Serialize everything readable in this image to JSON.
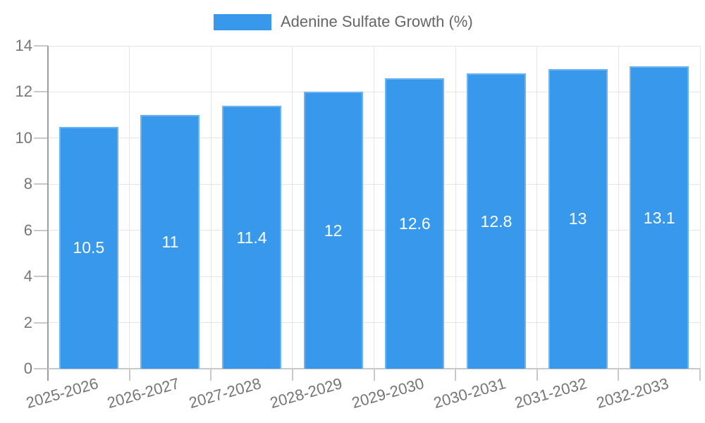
{
  "legend": {
    "label": "Adenine Sulfate Growth (%)"
  },
  "chart_data": {
    "type": "bar",
    "title": "Adenine Sulfate Growth (%)",
    "categories": [
      "2025-2026",
      "2026-2027",
      "2027-2028",
      "2028-2029",
      "2029-2030",
      "2030-2031",
      "2031-2032",
      "2032-2033"
    ],
    "values": [
      10.5,
      11,
      11.4,
      12,
      12.6,
      12.8,
      13,
      13.1
    ],
    "data_labels": [
      "10.5",
      "11",
      "11.4",
      "12",
      "12.6",
      "12.8",
      "13",
      "13.1"
    ],
    "xlabel": "",
    "ylabel": "",
    "ylim": [
      0,
      14
    ],
    "yticks": [
      0,
      2,
      4,
      6,
      8,
      10,
      12,
      14
    ],
    "grid": true,
    "legend_position": "top-center",
    "colors": {
      "bar_fill": "#3899EC",
      "bar_border": "#6FB3F0",
      "bar_label_text": "#ffffff",
      "grid_line": "#E5E5E5",
      "axis_line": "#9E9E9E",
      "tick_line": "#C9C9C9",
      "axis_text": "#757575",
      "legend_text": "#666666"
    }
  }
}
